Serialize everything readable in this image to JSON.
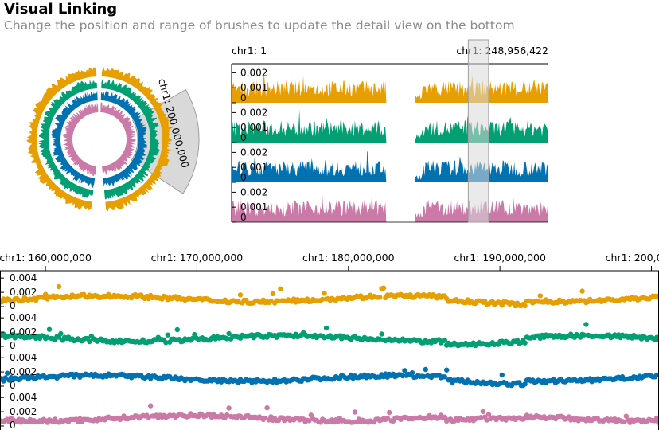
{
  "header": {
    "title": "Visual Linking",
    "subtitle": "Change the position and range of brushes to update the detail view on the bottom"
  },
  "colors": {
    "series": [
      "#E79F00",
      "#029F73",
      "#0072B2",
      "#CB7AA7"
    ],
    "brush_fill": "#d9d9d9",
    "brush_stroke": "#9e9e9e",
    "axis": "#000000"
  },
  "circular_view": {
    "brush_label": "chr1: 200,000,000"
  },
  "linear_overview": {
    "start_label": "chr1: 1",
    "end_label": "chr1: 248,956,422",
    "brush_start": 186000000,
    "brush_end": 202000000,
    "chrom_length": 248956422
  },
  "chart_data": [
    {
      "type": "area",
      "view": "linear overview",
      "x_axis_labels": [
        "chr1: 1",
        "chr1: 248,956,422"
      ],
      "xlim": [
        1,
        248956422
      ],
      "series_count": 4,
      "y_ticks": [
        "0.002",
        "0.001",
        "0"
      ],
      "ylim": [
        0,
        0.0025
      ],
      "gap_range": [
        121000000,
        143000000
      ]
    },
    {
      "type": "scatter",
      "view": "detail",
      "x_tick_labels": [
        "chr1: 160,000,000",
        "chr1: 170,000,000",
        "chr1: 180,000,000",
        "chr1: 190,000,000",
        "chr1: 200,000,000"
      ],
      "x_ticks": [
        160000000,
        170000000,
        180000000,
        190000000,
        200000000
      ],
      "series_count": 4,
      "y_ticks": [
        "0.004",
        "0.002",
        "0"
      ],
      "ylim": [
        0,
        0.0048
      ]
    }
  ]
}
